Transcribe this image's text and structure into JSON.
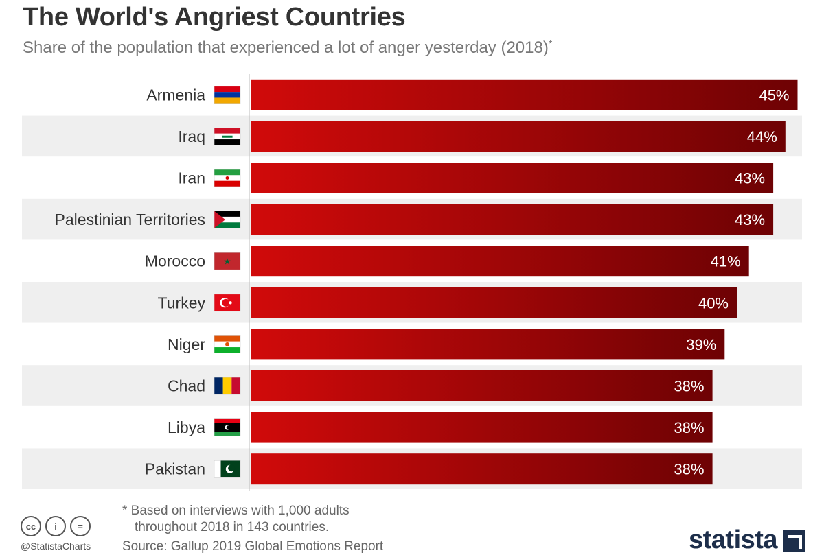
{
  "title": "The World's Angriest Countries",
  "subtitle": "Share of the population that experienced a lot of anger yesterday (2018)",
  "subtitle_mark": "*",
  "chart_data": {
    "type": "bar",
    "orientation": "horizontal",
    "categories": [
      "Armenia",
      "Iraq",
      "Iran",
      "Palestinian Territories",
      "Morocco",
      "Turkey",
      "Niger",
      "Chad",
      "Libya",
      "Pakistan"
    ],
    "values": [
      45,
      44,
      43,
      43,
      41,
      40,
      39,
      38,
      38,
      38
    ],
    "value_labels": [
      "45%",
      "44%",
      "43%",
      "43%",
      "41%",
      "40%",
      "39%",
      "38%",
      "38%",
      "38%"
    ],
    "unit": "%",
    "flags": [
      "armenia-flag",
      "iraq-flag",
      "iran-flag",
      "palestine-flag",
      "morocco-flag",
      "turkey-flag",
      "niger-flag",
      "chad-flag",
      "libya-flag",
      "pakistan-flag"
    ],
    "bar_color_start": "#d10a0a",
    "bar_color_end": "#6e0204",
    "row_stripe_color": "#efefef"
  },
  "footer": {
    "note_line1": "* Based on interviews with 1,000 adults",
    "note_line2": "throughout 2018 in 143 countries.",
    "source": "Source: Gallup 2019 Global Emotions Report",
    "handle": "@StatistaCharts",
    "logo": "statista"
  },
  "license_icons": [
    "cc-icon",
    "attribution-icon",
    "no-derivatives-icon"
  ]
}
